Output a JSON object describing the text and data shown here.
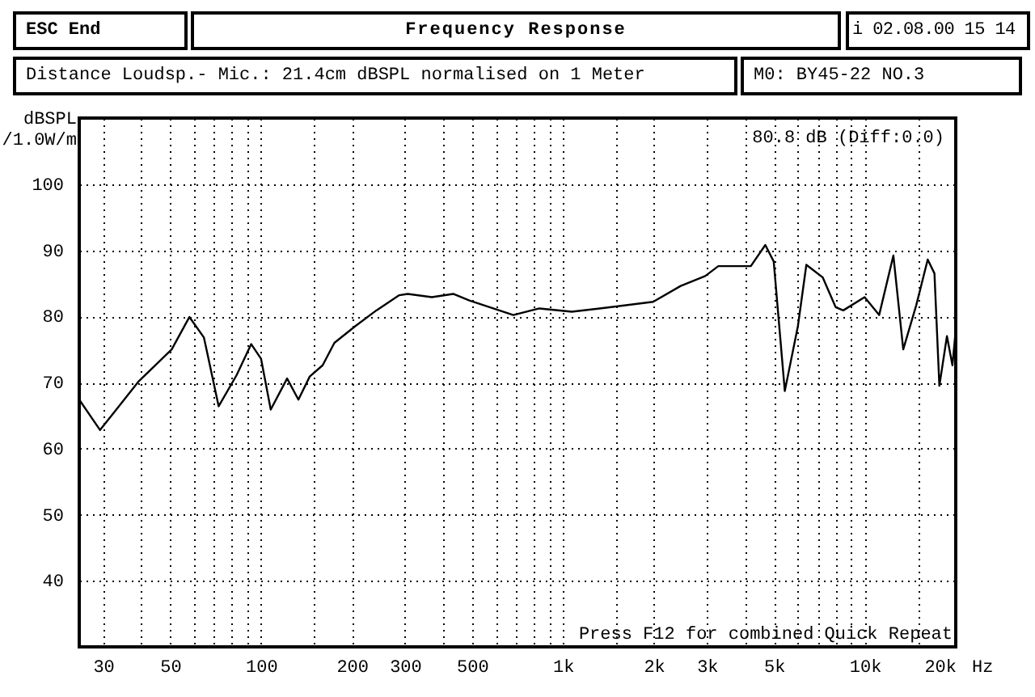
{
  "chart_data": {
    "type": "line",
    "title": "Frequency Response",
    "subtitle": "Distance Loudsp.- Mic.: 21.4cm dBSPL normalised on 1 Meter",
    "ylabel": "dBSPL /1.0W/m",
    "xlabel": "Hz",
    "annotations": [
      "ESC End",
      "i 02.08.00 15 14",
      "M0: BY45-22 NO.3",
      "80.8 dB (Diff:0.0)",
      "Press F12 for combined Quick Repeat"
    ],
    "log": "x",
    "grid": true,
    "marker": "none",
    "line_style": "solid",
    "xlim": [
      25,
      20000
    ],
    "ylim": [
      30,
      110
    ],
    "xticks": [
      30,
      {
        "value": 40,
        "label": null
      },
      50,
      {
        "value": 60,
        "label": null
      },
      {
        "value": 70,
        "label": null
      },
      {
        "value": 80,
        "label": null
      },
      {
        "value": 90,
        "label": null
      },
      100,
      {
        "value": 150,
        "label": null
      },
      200,
      300,
      {
        "value": 400,
        "label": null
      },
      500,
      {
        "value": 600,
        "label": null
      },
      {
        "value": 700,
        "label": null
      },
      {
        "value": 800,
        "label": null
      },
      {
        "value": 900,
        "label": null
      },
      {
        "value": 1000,
        "label": "1k"
      },
      {
        "value": 1500,
        "label": null
      },
      {
        "value": 2000,
        "label": "2k"
      },
      {
        "value": 3000,
        "label": "3k"
      },
      {
        "value": 4000,
        "label": null
      },
      {
        "value": 5000,
        "label": "5k"
      },
      {
        "value": 6000,
        "label": null
      },
      {
        "value": 7000,
        "label": null
      },
      {
        "value": 8000,
        "label": null
      },
      {
        "value": 9000,
        "label": null
      },
      {
        "value": 10000,
        "label": "10k"
      },
      {
        "value": 15000,
        "label": null
      },
      {
        "value": 20000,
        "label": "20k"
      }
    ],
    "yticks": [
      40,
      50,
      60,
      70,
      80,
      90,
      100
    ],
    "series": [
      {
        "color": "#000000",
        "x": [
          25,
          29.3,
          39.4,
          50.6,
          57.9,
          64.7,
          72.4,
          83,
          92.8,
          100,
          107.7,
          122,
          133,
          145,
          160,
          175,
          205,
          241,
          287,
          306,
          368,
          433,
          490,
          685,
          786,
          836,
          1070,
          1324,
          1990,
          2455,
          2960,
          3270,
          3700,
          4190,
          4680,
          4990,
          5430,
          6000,
          6400,
          7250,
          8000,
          8480,
          9980,
          11150,
          12430,
          13400,
          14800,
          16150,
          17000,
          17650,
          18700,
          19500,
          20000
        ],
        "values": [
          67.4,
          62.8,
          70.2,
          75,
          79.9,
          76.8,
          66.4,
          71.1,
          75.8,
          73.6,
          65.9,
          70.6,
          67.4,
          70.9,
          72.6,
          76,
          78.5,
          80.9,
          83.2,
          83.4,
          82.9,
          83.4,
          82.4,
          80.2,
          80.9,
          81.2,
          80.7,
          81.2,
          82.2,
          84.6,
          86.1,
          87.6,
          87.6,
          87.6,
          90.8,
          88.3,
          68.7,
          78.5,
          87.8,
          85.9,
          81.4,
          80.9,
          82.9,
          80.2,
          89.2,
          75,
          81.7,
          88.6,
          86.5,
          69.5,
          77,
          72.6,
          78
        ]
      }
    ]
  }
}
